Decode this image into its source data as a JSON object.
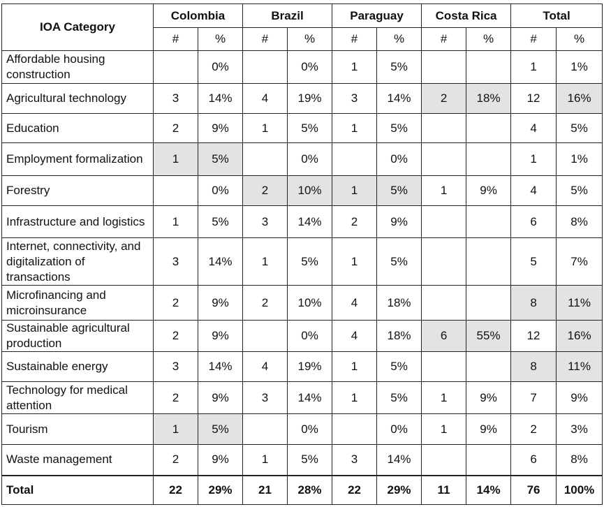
{
  "table": {
    "header": {
      "first": "IOA Category",
      "groups": [
        "Colombia",
        "Brazil",
        "Paraguay",
        "Costa Rica",
        "Total"
      ],
      "sub": [
        "#",
        "%"
      ]
    },
    "shade_color": "#e3e3e3",
    "rows": [
      {
        "cells": [
          "Affordable housing construction",
          null,
          "0%",
          null,
          "0%",
          1,
          "5%",
          null,
          null,
          1,
          "1%"
        ],
        "shaded": []
      },
      {
        "cells": [
          "Agricultural technology",
          3,
          "14%",
          4,
          "19%",
          3,
          "14%",
          2,
          "18%",
          12,
          "16%"
        ],
        "shaded": [
          7,
          8,
          10
        ]
      },
      {
        "cells": [
          "Education",
          2,
          "9%",
          1,
          "5%",
          1,
          "5%",
          null,
          null,
          4,
          "5%"
        ],
        "shaded": []
      },
      {
        "cells": [
          "Employment formalization",
          1,
          "5%",
          null,
          "0%",
          null,
          "0%",
          null,
          null,
          1,
          "1%"
        ],
        "shaded": [
          1,
          2
        ]
      },
      {
        "cells": [
          "Forestry",
          null,
          "0%",
          2,
          "10%",
          1,
          "5%",
          1,
          "9%",
          4,
          "5%"
        ],
        "shaded": [
          3,
          4,
          5,
          6
        ]
      },
      {
        "cells": [
          "Infrastructure and logistics",
          1,
          "5%",
          3,
          "14%",
          2,
          "9%",
          null,
          null,
          6,
          "8%"
        ],
        "shaded": []
      },
      {
        "cells": [
          "Internet, connectivity, and digitalization of transactions",
          3,
          "14%",
          1,
          "5%",
          1,
          "5%",
          null,
          null,
          5,
          "7%"
        ],
        "shaded": []
      },
      {
        "cells": [
          "Microfinancing and microinsurance",
          2,
          "9%",
          2,
          "10%",
          4,
          "18%",
          null,
          null,
          8,
          "11%"
        ],
        "shaded": [
          9,
          10
        ]
      },
      {
        "cells": [
          "Sustainable agricultural production",
          2,
          "9%",
          null,
          "0%",
          4,
          "18%",
          6,
          "55%",
          12,
          "16%"
        ],
        "shaded": [
          7,
          8,
          10
        ]
      },
      {
        "cells": [
          "Sustainable energy",
          3,
          "14%",
          4,
          "19%",
          1,
          "5%",
          null,
          null,
          8,
          "11%"
        ],
        "shaded": [
          9,
          10
        ]
      },
      {
        "cells": [
          "Technology for medical attention",
          2,
          "9%",
          3,
          "14%",
          1,
          "5%",
          1,
          "9%",
          7,
          "9%"
        ],
        "shaded": []
      },
      {
        "cells": [
          "Tourism",
          1,
          "5%",
          null,
          "0%",
          null,
          "0%",
          1,
          "9%",
          2,
          "3%"
        ],
        "shaded": [
          1,
          2
        ]
      },
      {
        "cells": [
          "Waste management",
          2,
          "9%",
          1,
          "5%",
          3,
          "14%",
          null,
          null,
          6,
          "8%"
        ],
        "shaded": []
      }
    ],
    "total": [
      "Total",
      22,
      "29%",
      21,
      "28%",
      22,
      "29%",
      11,
      "14%",
      76,
      "100%"
    ]
  }
}
